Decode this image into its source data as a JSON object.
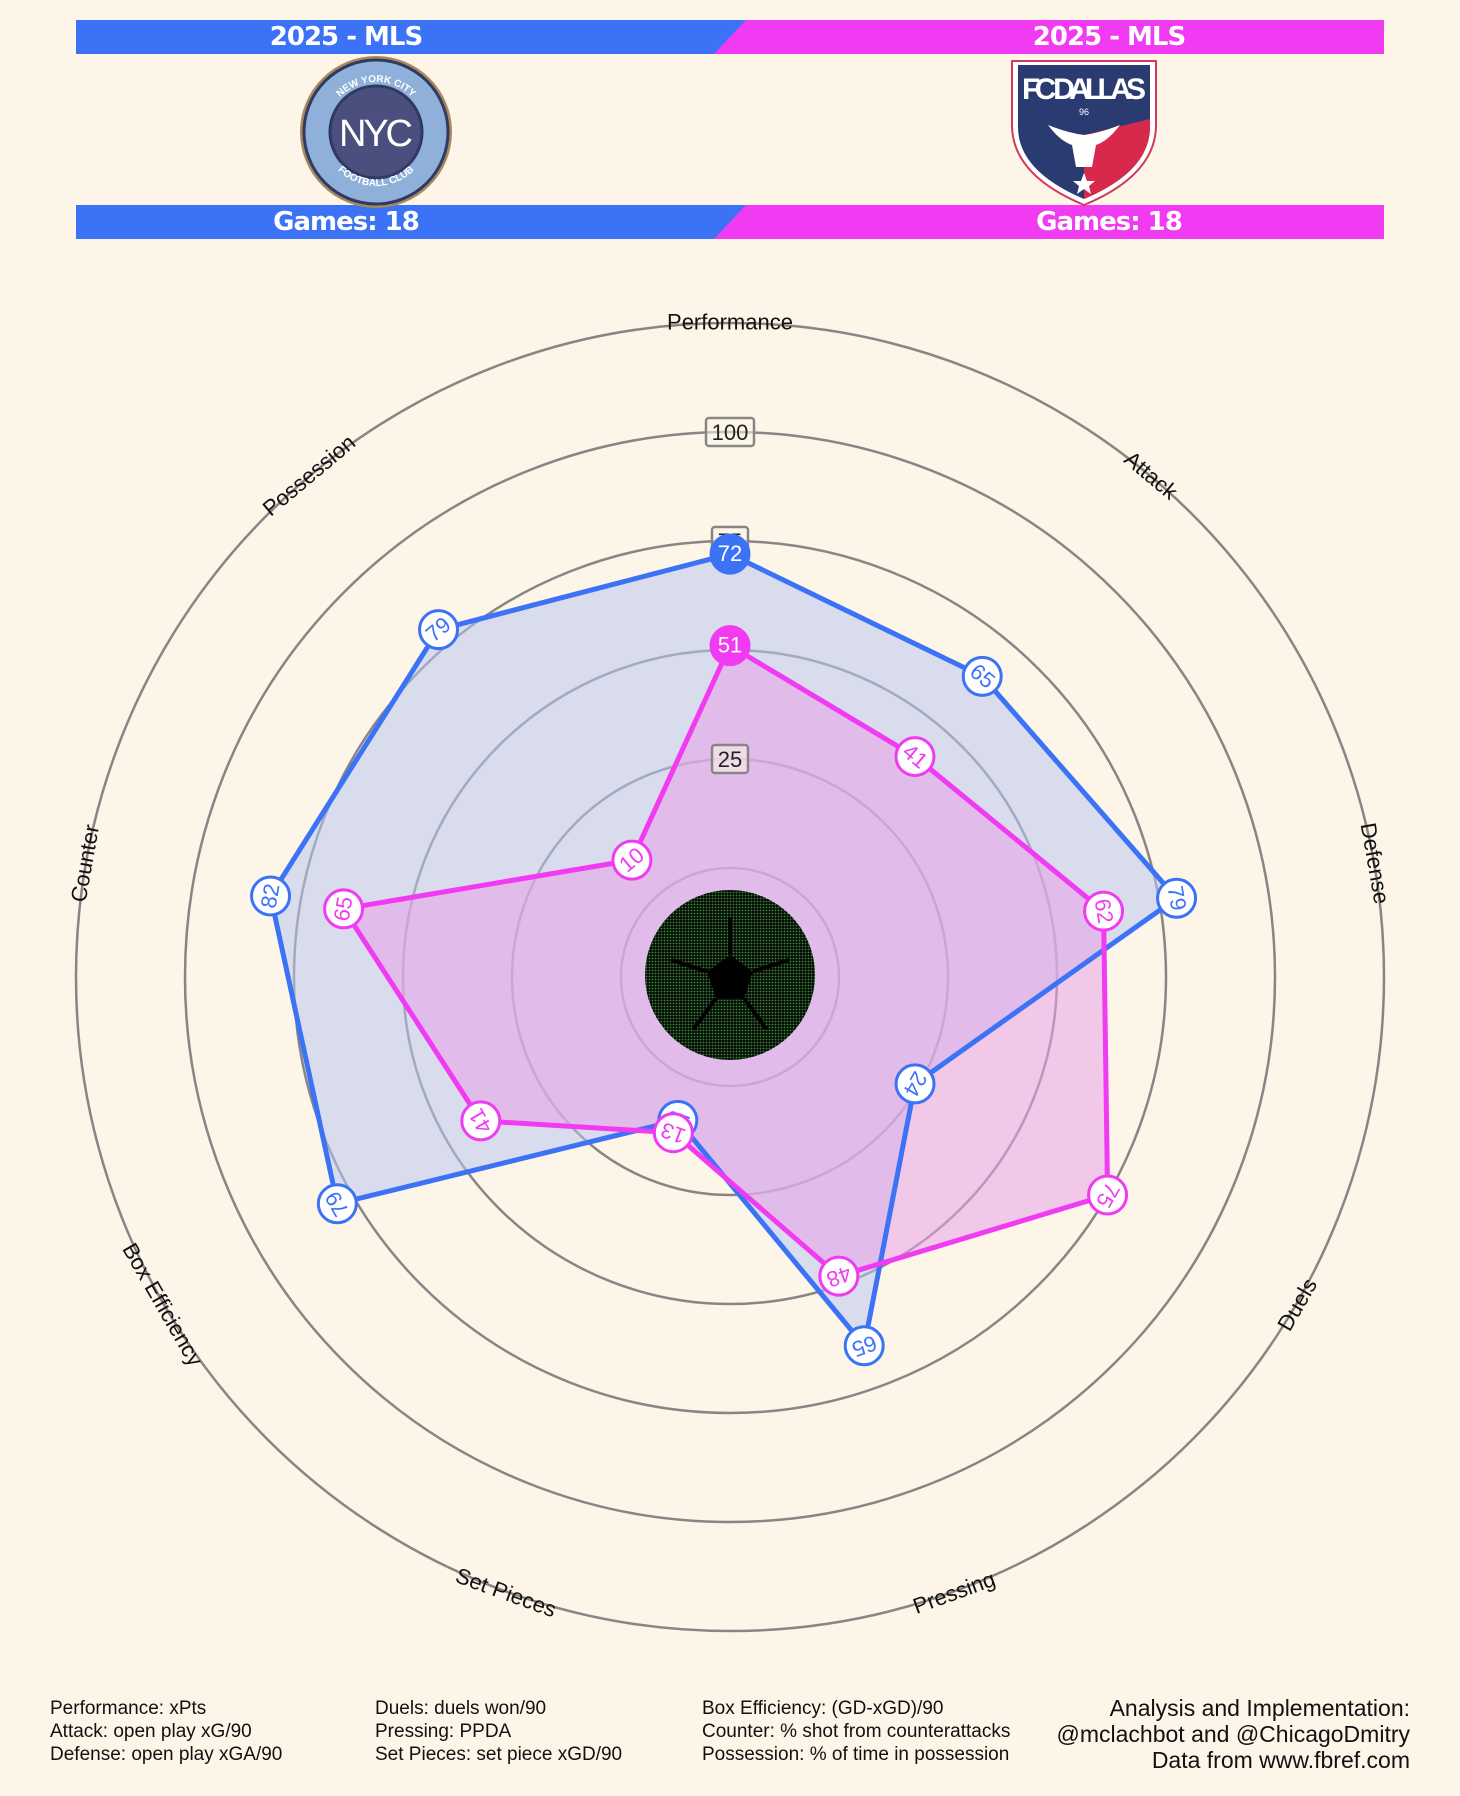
{
  "teams": {
    "left": {
      "season": "2025 - MLS",
      "games": "Games: 18",
      "logo_name": "new-york-city-fc",
      "logo_ring_text_top": "NEW YORK CITY",
      "logo_ring_text_bottom": "FOOTBALL CLUB",
      "logo_letters": "NYC",
      "color": "#3b72f6"
    },
    "right": {
      "season": "2025 - MLS",
      "games": "Games: 18",
      "logo_name": "fc-dallas",
      "logo_wordmark": "FC DALLAS",
      "logo_number": "96",
      "color": "#f03bf2"
    }
  },
  "chart_data": {
    "type": "radar",
    "categories": [
      "Performance",
      "Attack",
      "Defense",
      "Duels",
      "Pressing",
      "Set Pieces",
      "Box Efficiency",
      "Counter",
      "Possession"
    ],
    "series": [
      {
        "values": [
          72,
          65,
          79,
          24,
          65,
          10,
          79,
          82,
          79
        ],
        "color": "#3b72f6",
        "fill": "#b9c6f0"
      },
      {
        "values": [
          51,
          41,
          62,
          75,
          48,
          13,
          41,
          65,
          10
        ],
        "color": "#f03bf2",
        "fill": "#e9a3ea"
      }
    ],
    "rlim": [
      -25,
      100
    ],
    "ring_values": [
      0,
      25,
      50,
      75,
      100
    ],
    "ring_labels": [
      "25",
      "75",
      "100"
    ],
    "grid": true
  },
  "footer": {
    "col1": [
      "Performance: xPts",
      "Attack: open play xG/90",
      "Defense: open play xGA/90"
    ],
    "col2": [
      "Duels: duels won/90",
      "Pressing: PPDA",
      "Set Pieces: set piece xGD/90"
    ],
    "col3": [
      "Box Efficiency: (GD-xGD)/90",
      "Counter: % shot from counterattacks",
      "Possession: % of time in possession"
    ],
    "credits": [
      "Analysis and Implementation:",
      "@mclachbot and @ChicagoDmitry",
      "Data from www.fbref.com"
    ]
  }
}
